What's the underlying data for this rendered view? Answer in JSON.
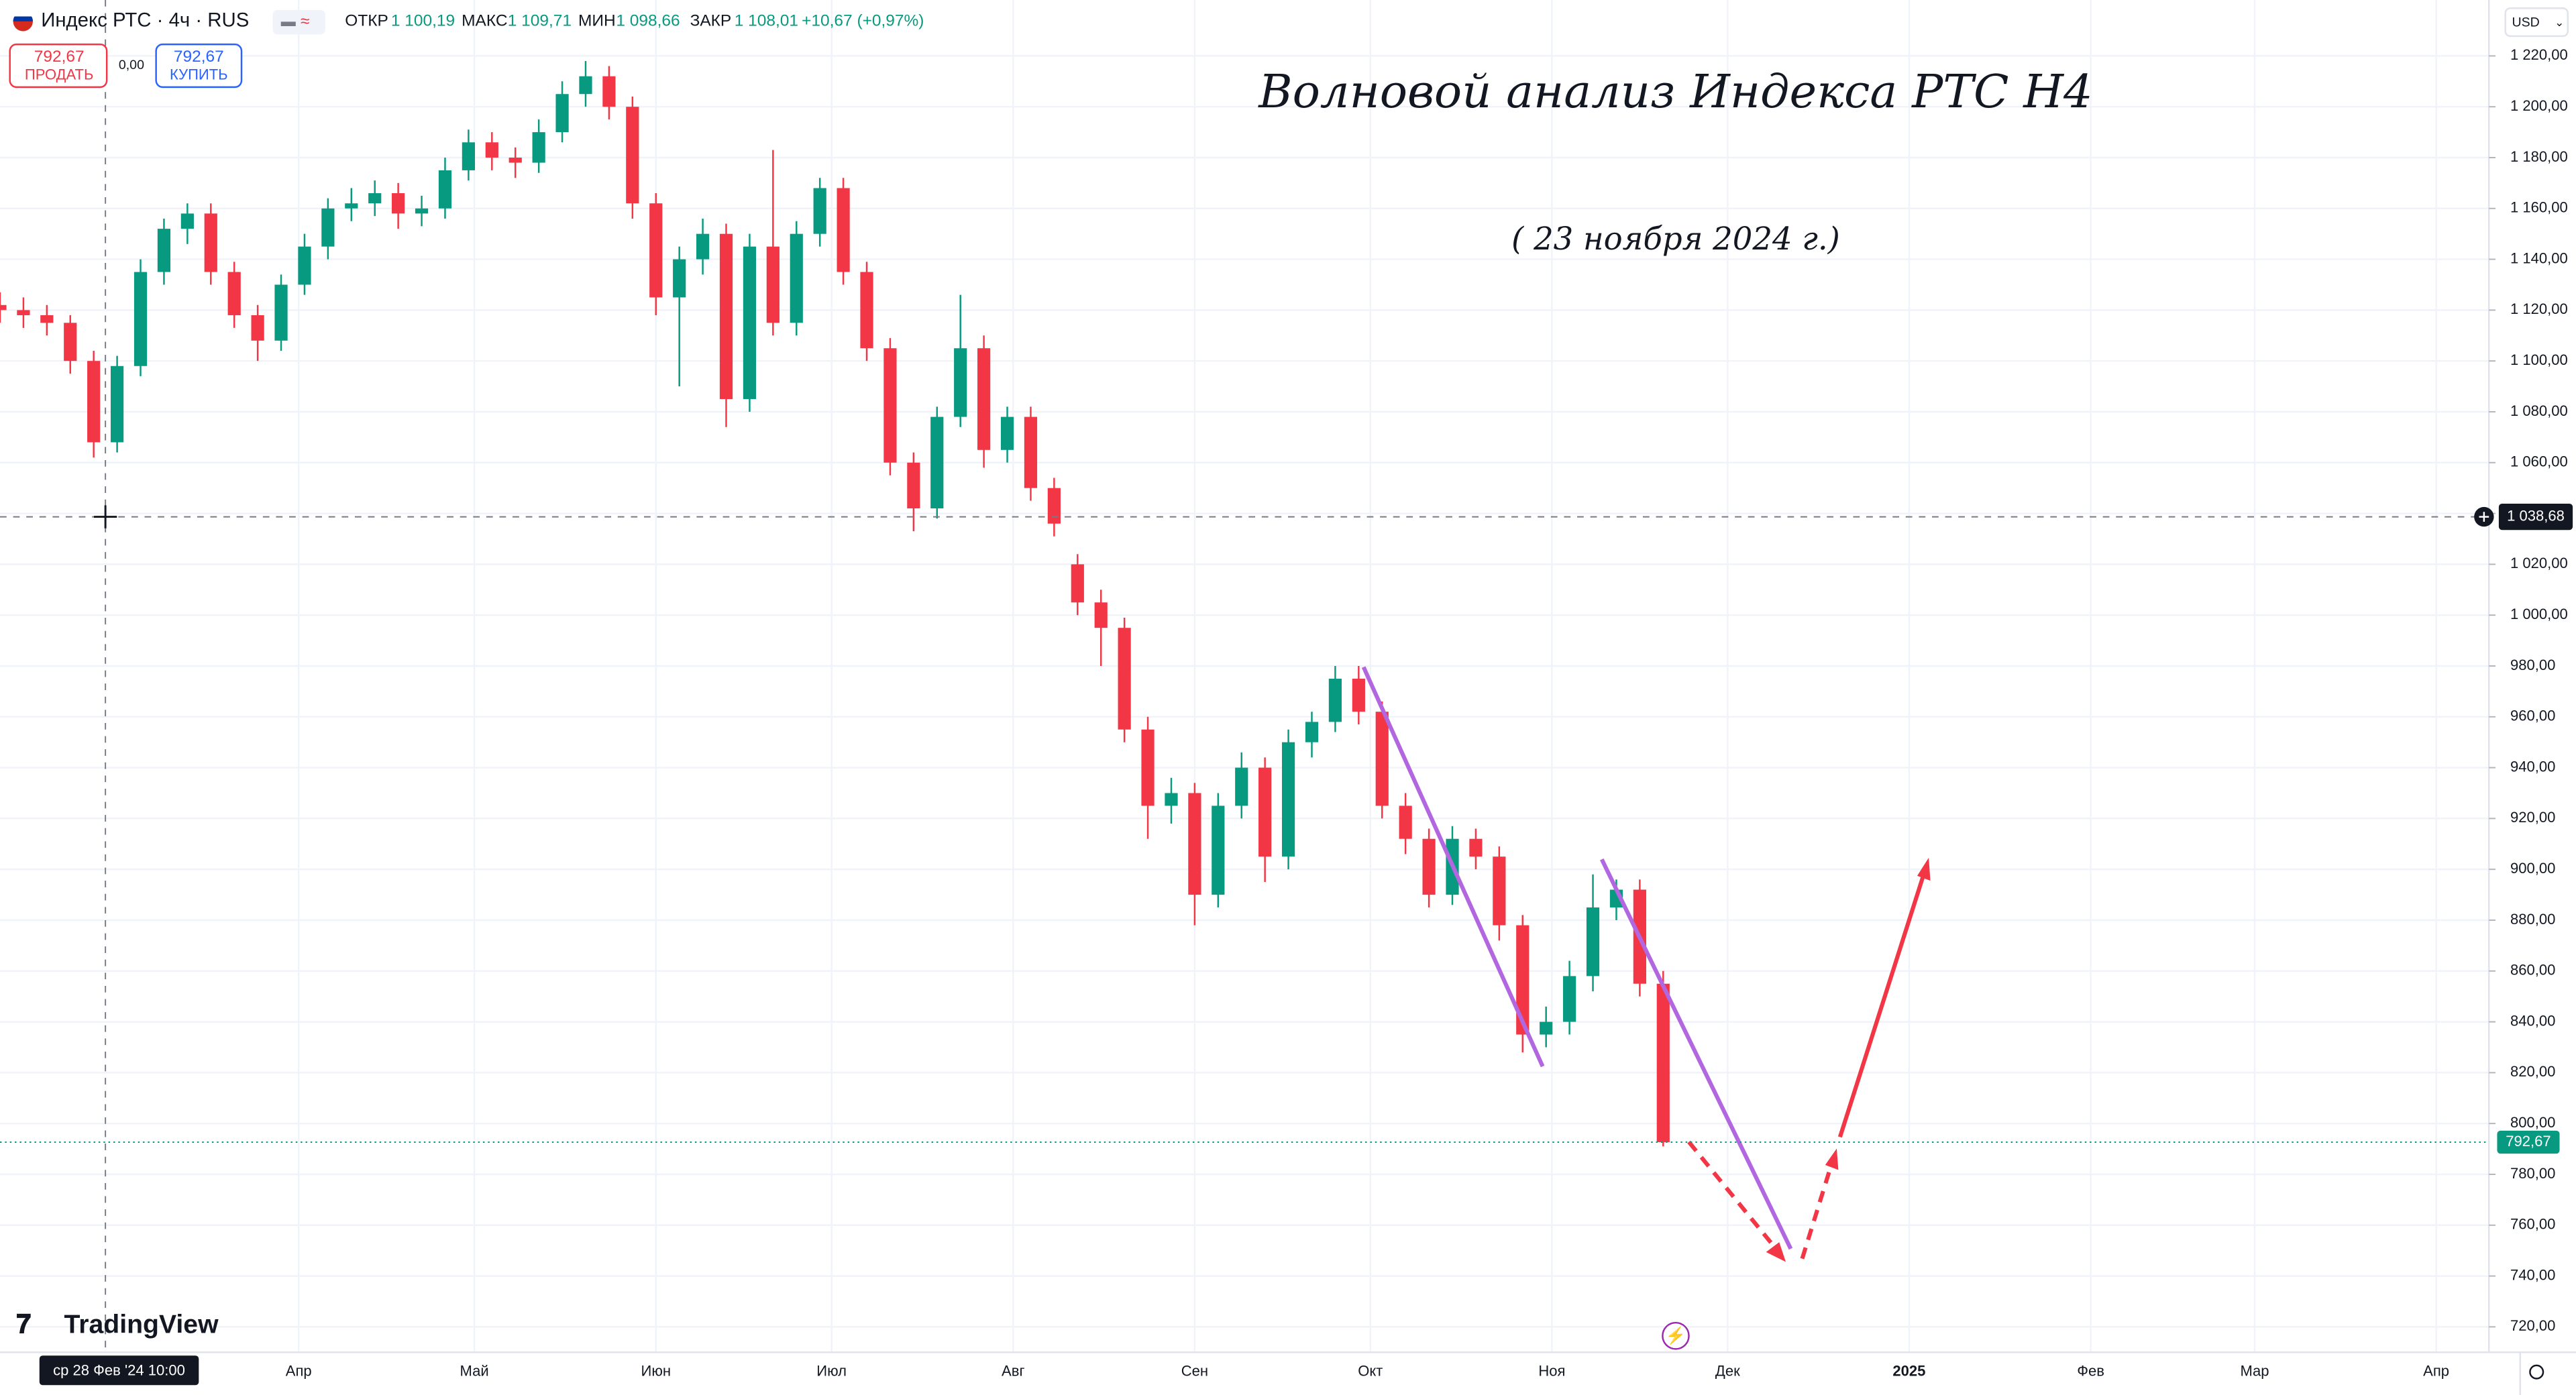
{
  "header": {
    "symbol": "Индекс РТС · 4ч · RUS",
    "open_label": "ОТКР",
    "open": "1 100,19",
    "high_label": "МАКС",
    "high": "1 109,71",
    "low_label": "МИН",
    "low": "1 098,66",
    "close_label": "ЗАКР",
    "close": "1 108,01",
    "change": "+10,67 (+0,97%)",
    "sell_price": "792,67",
    "sell": "ПРОДАТЬ",
    "spread": "0,00",
    "buy_price": "792,67",
    "buy": "КУПИТЬ",
    "currency": "USD",
    "logo": "TradingView"
  },
  "chart_data": {
    "type": "candlestick",
    "title": "Волновой анализ Индекса РТС Н4",
    "subtitle": "( 23 ноября 2024 г.)",
    "up_color": "#089981",
    "down_color": "#f23645",
    "grid": true,
    "xlim": [
      "2024-02-10",
      "2025-04-10"
    ],
    "xticks": [
      {
        "value": "2024-04-01",
        "label": "Апр"
      },
      {
        "value": "2024-05-01",
        "label": "Май"
      },
      {
        "value": "2024-06-01",
        "label": "Июн"
      },
      {
        "value": "2024-07-01",
        "label": "Июл"
      },
      {
        "value": "2024-08-01",
        "label": "Авг"
      },
      {
        "value": "2024-09-01",
        "label": "Сен"
      },
      {
        "value": "2024-10-01",
        "label": "Окт"
      },
      {
        "value": "2024-11-01",
        "label": "Ноя"
      },
      {
        "value": "2024-12-01",
        "label": "Дек"
      },
      {
        "value": "2025-01-01",
        "label": "2025"
      },
      {
        "value": "2025-02-01",
        "label": "Фев"
      },
      {
        "value": "2025-03-01",
        "label": "Мар"
      },
      {
        "value": "2025-04-01",
        "label": "Апр"
      }
    ],
    "ylim": [
      710,
      1242
    ],
    "yticks": [
      {
        "value": 720,
        "label": "720,00"
      },
      {
        "value": 740,
        "label": "740,00"
      },
      {
        "value": 760,
        "label": "760,00"
      },
      {
        "value": 780,
        "label": "780,00"
      },
      {
        "value": 800,
        "label": "800,00"
      },
      {
        "value": 820,
        "label": "820,00"
      },
      {
        "value": 840,
        "label": "840,00"
      },
      {
        "value": 860,
        "label": "860,00"
      },
      {
        "value": 880,
        "label": "880,00"
      },
      {
        "value": 900,
        "label": "900,00"
      },
      {
        "value": 920,
        "label": "920,00"
      },
      {
        "value": 940,
        "label": "940,00"
      },
      {
        "value": 960,
        "label": "960,00"
      },
      {
        "value": 980,
        "label": "980,00"
      },
      {
        "value": 1000,
        "label": "1 000,00"
      },
      {
        "value": 1020,
        "label": "1 020,00"
      },
      {
        "value": 1040,
        "label": "1 040,00"
      },
      {
        "value": 1060,
        "label": "1 060,00"
      },
      {
        "value": 1080,
        "label": "1 080,00"
      },
      {
        "value": 1100,
        "label": "1 100,00"
      },
      {
        "value": 1120,
        "label": "1 120,00"
      },
      {
        "value": 1140,
        "label": "1 140,00"
      },
      {
        "value": 1160,
        "label": "1 160,00"
      },
      {
        "value": 1180,
        "label": "1 180,00"
      },
      {
        "value": 1200,
        "label": "1 200,00"
      },
      {
        "value": 1220,
        "label": "1 220,00"
      }
    ],
    "x": [
      "2024-02-10",
      "2024-02-14",
      "2024-02-18",
      "2024-02-22",
      "2024-02-26",
      "2024-03-01",
      "2024-03-05",
      "2024-03-09",
      "2024-03-13",
      "2024-03-17",
      "2024-03-21",
      "2024-03-25",
      "2024-03-29",
      "2024-04-02",
      "2024-04-06",
      "2024-04-10",
      "2024-04-14",
      "2024-04-18",
      "2024-04-22",
      "2024-04-26",
      "2024-04-30",
      "2024-05-04",
      "2024-05-08",
      "2024-05-12",
      "2024-05-16",
      "2024-05-20",
      "2024-05-24",
      "2024-05-28",
      "2024-06-01",
      "2024-06-05",
      "2024-06-09",
      "2024-06-13",
      "2024-06-17",
      "2024-06-21",
      "2024-06-25",
      "2024-06-29",
      "2024-07-03",
      "2024-07-07",
      "2024-07-11",
      "2024-07-15",
      "2024-07-19",
      "2024-07-23",
      "2024-07-27",
      "2024-07-31",
      "2024-08-04",
      "2024-08-08",
      "2024-08-12",
      "2024-08-16",
      "2024-08-20",
      "2024-08-24",
      "2024-08-28",
      "2024-09-01",
      "2024-09-05",
      "2024-09-09",
      "2024-09-13",
      "2024-09-17",
      "2024-09-21",
      "2024-09-25",
      "2024-09-29",
      "2024-10-03",
      "2024-10-07",
      "2024-10-11",
      "2024-10-15",
      "2024-10-19",
      "2024-10-23",
      "2024-10-27",
      "2024-10-31",
      "2024-11-04",
      "2024-11-08",
      "2024-11-12",
      "2024-11-16",
      "2024-11-20"
    ],
    "open": [
      1122,
      1120,
      1118,
      1115,
      1100,
      1068,
      1098,
      1135,
      1152,
      1158,
      1135,
      1118,
      1108,
      1130,
      1145,
      1160,
      1162,
      1166,
      1158,
      1160,
      1175,
      1186,
      1180,
      1178,
      1190,
      1205,
      1212,
      1200,
      1162,
      1125,
      1140,
      1150,
      1085,
      1145,
      1115,
      1150,
      1168,
      1135,
      1105,
      1060,
      1042,
      1078,
      1105,
      1065,
      1078,
      1050,
      1020,
      1005,
      995,
      955,
      925,
      930,
      890,
      925,
      940,
      905,
      950,
      958,
      975,
      962,
      925,
      912,
      890,
      912,
      905,
      878,
      835,
      840,
      858,
      885,
      892,
      855
    ],
    "high": [
      1127,
      1125,
      1122,
      1118,
      1104,
      1102,
      1140,
      1156,
      1162,
      1162,
      1139,
      1122,
      1134,
      1150,
      1164,
      1168,
      1171,
      1170,
      1165,
      1180,
      1191,
      1190,
      1184,
      1195,
      1210,
      1218,
      1216,
      1204,
      1166,
      1145,
      1156,
      1154,
      1150,
      1183,
      1155,
      1172,
      1172,
      1139,
      1109,
      1064,
      1082,
      1126,
      1110,
      1082,
      1082,
      1054,
      1024,
      1010,
      999,
      960,
      936,
      934,
      930,
      946,
      944,
      955,
      962,
      980,
      980,
      966,
      930,
      916,
      917,
      916,
      909,
      882,
      846,
      864,
      898,
      896,
      896,
      860
    ],
    "low": [
      1115,
      1113,
      1110,
      1095,
      1062,
      1064,
      1094,
      1130,
      1146,
      1130,
      1113,
      1100,
      1104,
      1126,
      1140,
      1155,
      1157,
      1152,
      1153,
      1156,
      1171,
      1175,
      1172,
      1174,
      1186,
      1200,
      1195,
      1156,
      1118,
      1090,
      1134,
      1074,
      1080,
      1110,
      1110,
      1145,
      1130,
      1100,
      1055,
      1033,
      1038,
      1074,
      1058,
      1060,
      1045,
      1031,
      1000,
      980,
      950,
      912,
      918,
      878,
      885,
      920,
      895,
      900,
      944,
      954,
      957,
      920,
      906,
      885,
      886,
      900,
      872,
      828,
      830,
      835,
      852,
      880,
      850,
      791
    ],
    "close": [
      1120,
      1118,
      1115,
      1100,
      1068,
      1098,
      1135,
      1152,
      1158,
      1135,
      1118,
      1108,
      1130,
      1145,
      1160,
      1162,
      1166,
      1158,
      1160,
      1175,
      1186,
      1180,
      1178,
      1190,
      1205,
      1212,
      1200,
      1162,
      1125,
      1140,
      1150,
      1085,
      1145,
      1115,
      1150,
      1168,
      1135,
      1105,
      1060,
      1042,
      1078,
      1105,
      1065,
      1078,
      1050,
      1036,
      1005,
      995,
      955,
      925,
      930,
      890,
      925,
      940,
      905,
      950,
      958,
      975,
      962,
      925,
      912,
      890,
      912,
      905,
      878,
      835,
      840,
      858,
      885,
      892,
      855,
      792.67
    ],
    "last_price": 792.67,
    "last_price_label": "792,67",
    "crosshair": {
      "price": 1038.68,
      "price_label": "1 038,68",
      "time": "2024-02-28",
      "time_label": "ср 28 Фев '24   10:00"
    }
  }
}
